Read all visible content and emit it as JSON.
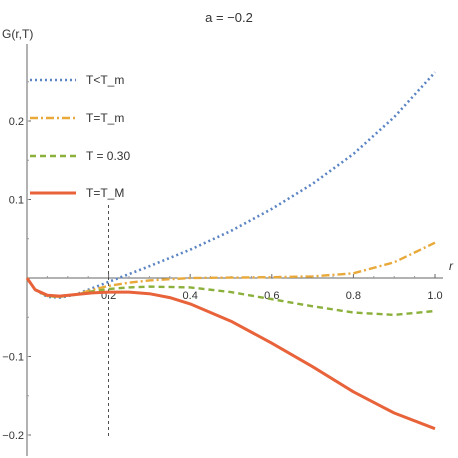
{
  "chart_data": {
    "type": "line",
    "title": "a = −0.2",
    "xlabel": "r",
    "ylabel": "G(r,T)",
    "xlim": [
      0,
      1.0
    ],
    "ylim": [
      -0.21,
      0.28
    ],
    "xticks": [
      0.2,
      0.4,
      0.6,
      0.8,
      1.0
    ],
    "xtick_labels": [
      "0.2",
      "0.4",
      "0.6",
      "0.8",
      "1.0"
    ],
    "yticks": [
      0.2,
      0.1,
      -0.1,
      -0.2
    ],
    "ytick_labels": [
      "0.2",
      "0.1",
      "−0.1",
      "−0.2"
    ],
    "vline_x": 0.2,
    "legend_position": "top-left",
    "series": [
      {
        "name": "T<T_m",
        "color": "#5b84c4",
        "dash": "dotted",
        "x": [
          0,
          0.02,
          0.05,
          0.08,
          0.12,
          0.16,
          0.2,
          0.25,
          0.3,
          0.4,
          0.5,
          0.6,
          0.7,
          0.8,
          0.9,
          1.0
        ],
        "y": [
          0,
          -0.015,
          -0.024,
          -0.025,
          -0.021,
          -0.013,
          -0.005,
          0.005,
          0.015,
          0.036,
          0.06,
          0.088,
          0.12,
          0.158,
          0.205,
          0.262
        ]
      },
      {
        "name": "T=T_m",
        "color": "#e8a93a",
        "dash": "dashdot",
        "x": [
          0,
          0.02,
          0.05,
          0.08,
          0.12,
          0.16,
          0.2,
          0.25,
          0.3,
          0.4,
          0.5,
          0.6,
          0.7,
          0.8,
          0.9,
          1.0
        ],
        "y": [
          0,
          -0.015,
          -0.023,
          -0.024,
          -0.021,
          -0.015,
          -0.01,
          -0.006,
          -0.003,
          0.0,
          0.0005,
          0.001,
          0.002,
          0.006,
          0.02,
          0.045
        ]
      },
      {
        "name": "T = 0.30",
        "color": "#8bb03b",
        "dash": "dashed",
        "x": [
          0,
          0.02,
          0.05,
          0.08,
          0.12,
          0.16,
          0.2,
          0.25,
          0.3,
          0.4,
          0.5,
          0.6,
          0.7,
          0.8,
          0.9,
          1.0
        ],
        "y": [
          0,
          -0.015,
          -0.023,
          -0.024,
          -0.021,
          -0.017,
          -0.014,
          -0.012,
          -0.011,
          -0.012,
          -0.018,
          -0.027,
          -0.036,
          -0.044,
          -0.047,
          -0.042
        ]
      },
      {
        "name": "T=T_M",
        "color": "#e8623a",
        "dash": "solid",
        "x": [
          0,
          0.02,
          0.05,
          0.08,
          0.12,
          0.16,
          0.2,
          0.25,
          0.3,
          0.35,
          0.4,
          0.5,
          0.6,
          0.7,
          0.8,
          0.9,
          1.0
        ],
        "y": [
          0,
          -0.015,
          -0.022,
          -0.023,
          -0.021,
          -0.019,
          -0.018,
          -0.018,
          -0.02,
          -0.025,
          -0.033,
          -0.055,
          -0.083,
          -0.113,
          -0.145,
          -0.172,
          -0.192
        ]
      }
    ]
  }
}
